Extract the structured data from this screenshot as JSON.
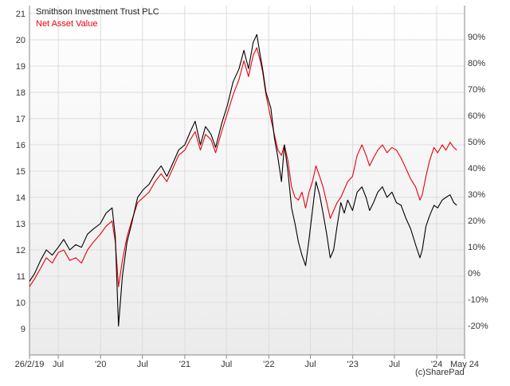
{
  "chart_data": {
    "type": "line",
    "legend_position": "top-left",
    "grid": true,
    "ylim": [
      8,
      22
    ],
    "ylim_right": [
      "-30%",
      "93%"
    ],
    "y_ticks": [
      "9",
      "10",
      "11",
      "12",
      "13",
      "14",
      "15",
      "16",
      "17",
      "18",
      "19",
      "20",
      "21"
    ],
    "y2_ticks": [
      "-20%",
      "-10%",
      "0%",
      "10%",
      "20%",
      "30%",
      "40%",
      "50%",
      "60%",
      "70%",
      "80%",
      "90%"
    ],
    "x_ticks": [
      "26/2/19",
      "Jul",
      "'20",
      "Jul",
      "'21",
      "Jul",
      "'22",
      "Jul",
      "'23",
      "Jul",
      "'24",
      "May 24"
    ],
    "series": [
      {
        "name": "Smithson Investment Trust PLC",
        "color": "#000000",
        "points": [
          [
            "2019-02-26",
            10.8
          ],
          [
            "2019-03-20",
            11.1
          ],
          [
            "2019-04-15",
            11.6
          ],
          [
            "2019-05-10",
            12.0
          ],
          [
            "2019-06-05",
            11.8
          ],
          [
            "2019-07-01",
            12.1
          ],
          [
            "2019-07-25",
            12.4
          ],
          [
            "2019-08-20",
            12.0
          ],
          [
            "2019-09-15",
            12.2
          ],
          [
            "2019-10-10",
            12.1
          ],
          [
            "2019-11-05",
            12.6
          ],
          [
            "2019-12-01",
            12.8
          ],
          [
            "2019-12-31",
            13.0
          ],
          [
            "2020-01-25",
            13.4
          ],
          [
            "2020-02-20",
            13.6
          ],
          [
            "2020-03-05",
            12.5
          ],
          [
            "2020-03-19",
            9.1
          ],
          [
            "2020-04-05",
            11.0
          ],
          [
            "2020-04-25",
            12.3
          ],
          [
            "2020-05-15",
            13.0
          ],
          [
            "2020-06-10",
            14.0
          ],
          [
            "2020-07-05",
            14.3
          ],
          [
            "2020-07-30",
            14.5
          ],
          [
            "2020-08-25",
            14.9
          ],
          [
            "2020-09-20",
            15.2
          ],
          [
            "2020-10-15",
            14.8
          ],
          [
            "2020-11-10",
            15.3
          ],
          [
            "2020-12-05",
            15.8
          ],
          [
            "2021-01-01",
            16.0
          ],
          [
            "2021-01-25",
            16.5
          ],
          [
            "2021-02-15",
            16.9
          ],
          [
            "2021-03-10",
            16.0
          ],
          [
            "2021-04-01",
            16.7
          ],
          [
            "2021-04-25",
            16.4
          ],
          [
            "2021-05-15",
            15.9
          ],
          [
            "2021-06-10",
            16.8
          ],
          [
            "2021-07-05",
            17.5
          ],
          [
            "2021-07-30",
            18.4
          ],
          [
            "2021-08-25",
            18.9
          ],
          [
            "2021-09-15",
            19.6
          ],
          [
            "2021-10-05",
            18.9
          ],
          [
            "2021-10-25",
            19.9
          ],
          [
            "2021-11-10",
            20.2
          ],
          [
            "2021-11-25",
            19.4
          ],
          [
            "2021-12-05",
            18.9
          ],
          [
            "2021-12-20",
            18.0
          ],
          [
            "2022-01-10",
            17.4
          ],
          [
            "2022-01-25",
            16.3
          ],
          [
            "2022-02-10",
            15.5
          ],
          [
            "2022-02-25",
            14.6
          ],
          [
            "2022-03-10",
            16.0
          ],
          [
            "2022-03-25",
            15.0
          ],
          [
            "2022-04-10",
            13.6
          ],
          [
            "2022-04-25",
            13.0
          ],
          [
            "2022-05-10",
            12.3
          ],
          [
            "2022-05-25",
            11.8
          ],
          [
            "2022-06-10",
            11.4
          ],
          [
            "2022-06-25",
            12.4
          ],
          [
            "2022-07-10",
            13.5
          ],
          [
            "2022-07-25",
            14.6
          ],
          [
            "2022-08-10",
            14.1
          ],
          [
            "2022-08-25",
            13.4
          ],
          [
            "2022-09-10",
            12.6
          ],
          [
            "2022-09-25",
            11.7
          ],
          [
            "2022-10-10",
            12.0
          ],
          [
            "2022-10-25",
            12.9
          ],
          [
            "2022-11-10",
            13.8
          ],
          [
            "2022-11-25",
            13.4
          ],
          [
            "2022-12-10",
            13.9
          ],
          [
            "2022-12-31",
            13.5
          ],
          [
            "2023-01-20",
            14.2
          ],
          [
            "2023-02-10",
            14.4
          ],
          [
            "2023-02-28",
            14.0
          ],
          [
            "2023-03-15",
            13.5
          ],
          [
            "2023-04-01",
            13.8
          ],
          [
            "2023-04-20",
            14.2
          ],
          [
            "2023-05-10",
            14.4
          ],
          [
            "2023-05-30",
            14.0
          ],
          [
            "2023-06-20",
            14.2
          ],
          [
            "2023-07-10",
            13.8
          ],
          [
            "2023-07-30",
            13.7
          ],
          [
            "2023-08-20",
            13.2
          ],
          [
            "2023-09-10",
            12.8
          ],
          [
            "2023-10-01",
            12.2
          ],
          [
            "2023-10-20",
            11.7
          ],
          [
            "2023-10-30",
            12.0
          ],
          [
            "2023-11-15",
            12.9
          ],
          [
            "2023-12-01",
            13.3
          ],
          [
            "2023-12-20",
            13.7
          ],
          [
            "2024-01-05",
            13.6
          ],
          [
            "2024-01-25",
            13.9
          ],
          [
            "2024-02-10",
            14.0
          ],
          [
            "2024-02-28",
            14.1
          ],
          [
            "2024-03-15",
            13.8
          ],
          [
            "2024-03-28",
            13.7
          ]
        ]
      },
      {
        "name": "Net Asset Value",
        "color": "#e8000b",
        "points": [
          [
            "2019-02-26",
            10.6
          ],
          [
            "2019-03-20",
            10.9
          ],
          [
            "2019-04-15",
            11.3
          ],
          [
            "2019-05-10",
            11.7
          ],
          [
            "2019-06-05",
            11.5
          ],
          [
            "2019-07-01",
            11.9
          ],
          [
            "2019-07-25",
            12.0
          ],
          [
            "2019-08-20",
            11.6
          ],
          [
            "2019-09-15",
            11.7
          ],
          [
            "2019-10-10",
            11.5
          ],
          [
            "2019-11-05",
            12.0
          ],
          [
            "2019-12-01",
            12.3
          ],
          [
            "2019-12-31",
            12.6
          ],
          [
            "2020-01-25",
            12.9
          ],
          [
            "2020-02-20",
            13.1
          ],
          [
            "2020-03-05",
            12.3
          ],
          [
            "2020-03-19",
            10.6
          ],
          [
            "2020-04-05",
            11.6
          ],
          [
            "2020-04-25",
            12.5
          ],
          [
            "2020-05-15",
            13.1
          ],
          [
            "2020-06-10",
            13.8
          ],
          [
            "2020-07-05",
            14.0
          ],
          [
            "2020-07-30",
            14.2
          ],
          [
            "2020-08-25",
            14.6
          ],
          [
            "2020-09-20",
            14.9
          ],
          [
            "2020-10-15",
            14.6
          ],
          [
            "2020-11-10",
            15.1
          ],
          [
            "2020-12-05",
            15.6
          ],
          [
            "2021-01-01",
            15.8
          ],
          [
            "2021-01-25",
            16.2
          ],
          [
            "2021-02-15",
            16.5
          ],
          [
            "2021-03-10",
            15.8
          ],
          [
            "2021-04-01",
            16.4
          ],
          [
            "2021-04-25",
            16.2
          ],
          [
            "2021-05-15",
            15.7
          ],
          [
            "2021-06-10",
            16.5
          ],
          [
            "2021-07-05",
            17.2
          ],
          [
            "2021-07-30",
            17.9
          ],
          [
            "2021-08-25",
            18.5
          ],
          [
            "2021-09-15",
            19.2
          ],
          [
            "2021-10-05",
            18.6
          ],
          [
            "2021-10-25",
            19.4
          ],
          [
            "2021-11-10",
            19.7
          ],
          [
            "2021-11-25",
            19.2
          ],
          [
            "2021-12-05",
            18.8
          ],
          [
            "2021-12-20",
            17.9
          ],
          [
            "2022-01-10",
            17.0
          ],
          [
            "2022-01-25",
            16.4
          ],
          [
            "2022-02-10",
            15.8
          ],
          [
            "2022-02-25",
            15.6
          ],
          [
            "2022-03-10",
            16.0
          ],
          [
            "2022-03-25",
            15.4
          ],
          [
            "2022-04-10",
            14.4
          ],
          [
            "2022-04-25",
            14.0
          ],
          [
            "2022-05-10",
            13.9
          ],
          [
            "2022-05-25",
            14.2
          ],
          [
            "2022-06-10",
            13.6
          ],
          [
            "2022-06-25",
            14.2
          ],
          [
            "2022-07-10",
            14.6
          ],
          [
            "2022-07-25",
            15.2
          ],
          [
            "2022-08-10",
            14.8
          ],
          [
            "2022-08-25",
            14.4
          ],
          [
            "2022-09-10",
            13.8
          ],
          [
            "2022-09-25",
            13.2
          ],
          [
            "2022-10-10",
            13.5
          ],
          [
            "2022-10-25",
            13.8
          ],
          [
            "2022-11-10",
            14.0
          ],
          [
            "2022-11-25",
            14.3
          ],
          [
            "2022-12-10",
            14.6
          ],
          [
            "2022-12-31",
            14.8
          ],
          [
            "2023-01-20",
            15.6
          ],
          [
            "2023-02-10",
            16.0
          ],
          [
            "2023-02-28",
            15.6
          ],
          [
            "2023-03-15",
            15.2
          ],
          [
            "2023-04-01",
            15.5
          ],
          [
            "2023-04-20",
            15.8
          ],
          [
            "2023-05-10",
            16.0
          ],
          [
            "2023-05-30",
            15.7
          ],
          [
            "2023-06-20",
            15.9
          ],
          [
            "2023-07-10",
            15.8
          ],
          [
            "2023-07-30",
            15.5
          ],
          [
            "2023-08-20",
            15.1
          ],
          [
            "2023-09-10",
            14.7
          ],
          [
            "2023-10-01",
            14.4
          ],
          [
            "2023-10-20",
            13.9
          ],
          [
            "2023-10-30",
            14.1
          ],
          [
            "2023-11-15",
            14.8
          ],
          [
            "2023-12-01",
            15.4
          ],
          [
            "2023-12-20",
            15.9
          ],
          [
            "2024-01-05",
            15.7
          ],
          [
            "2024-01-25",
            16.0
          ],
          [
            "2024-02-10",
            15.8
          ],
          [
            "2024-02-28",
            16.1
          ],
          [
            "2024-03-15",
            15.9
          ],
          [
            "2024-03-28",
            15.8
          ]
        ]
      }
    ]
  },
  "footer": {
    "copyright": "(c)SharePad"
  }
}
